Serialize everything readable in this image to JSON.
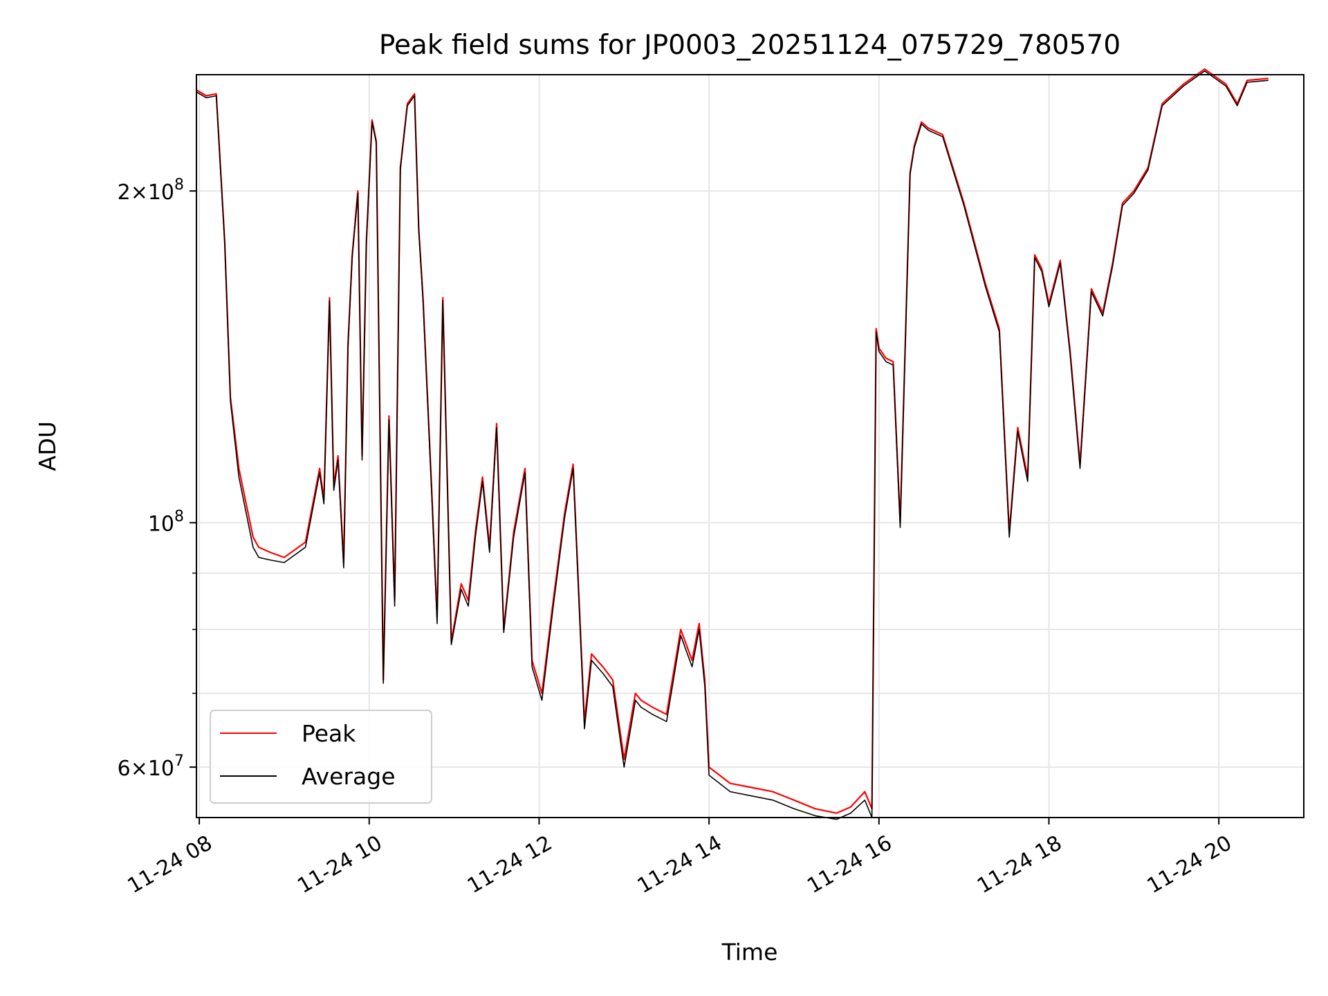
{
  "chart_data": {
    "type": "line",
    "title": "Peak field sums for JP0003_20251124_075729_780570",
    "xlabel": "Time",
    "ylabel": "ADU",
    "x_axis_type": "datetime",
    "xlim": [
      "2025-11-24T07:58",
      "2025-11-24T21:00"
    ],
    "ylim": [
      54000000,
      255000000
    ],
    "yscale": "log",
    "grid": true,
    "legend_position": "lower-left",
    "x_ticks": [
      {
        "value": "2025-11-24T08:00",
        "label": "11-24 08"
      },
      {
        "value": "2025-11-24T10:00",
        "label": "11-24 10"
      },
      {
        "value": "2025-11-24T12:00",
        "label": "11-24 12"
      },
      {
        "value": "2025-11-24T14:00",
        "label": "11-24 14"
      },
      {
        "value": "2025-11-24T16:00",
        "label": "11-24 16"
      },
      {
        "value": "2025-11-24T18:00",
        "label": "11-24 18"
      },
      {
        "value": "2025-11-24T20:00",
        "label": "11-24 20"
      }
    ],
    "y_ticks": [
      {
        "value": 60000000,
        "mantissa": "6",
        "exp": "7"
      },
      {
        "value": 100000000,
        "mantissa": "",
        "exp": "8"
      },
      {
        "value": 200000000,
        "mantissa": "2",
        "exp": "8"
      }
    ],
    "y_minor_ticks": [
      70000000,
      80000000,
      90000000
    ],
    "series": [
      {
        "name": "Peak",
        "color": "#ff0000",
        "x": [
          "2025-11-24T07:58",
          "2025-11-24T08:05",
          "2025-11-24T08:12",
          "2025-11-24T08:18",
          "2025-11-24T08:22",
          "2025-11-24T08:28",
          "2025-11-24T08:38",
          "2025-11-24T08:42",
          "2025-11-24T08:50",
          "2025-11-24T09:00",
          "2025-11-24T09:15",
          "2025-11-24T09:25",
          "2025-11-24T09:28",
          "2025-11-24T09:32",
          "2025-11-24T09:35",
          "2025-11-24T09:38",
          "2025-11-24T09:42",
          "2025-11-24T09:45",
          "2025-11-24T09:48",
          "2025-11-24T09:52",
          "2025-11-24T09:55",
          "2025-11-24T09:58",
          "2025-11-24T10:02",
          "2025-11-24T10:05",
          "2025-11-24T10:10",
          "2025-11-24T10:14",
          "2025-11-24T10:18",
          "2025-11-24T10:22",
          "2025-11-24T10:27",
          "2025-11-24T10:32",
          "2025-11-24T10:35",
          "2025-11-24T10:38",
          "2025-11-24T10:44",
          "2025-11-24T10:48",
          "2025-11-24T10:52",
          "2025-11-24T10:58",
          "2025-11-24T11:05",
          "2025-11-24T11:10",
          "2025-11-24T11:15",
          "2025-11-24T11:20",
          "2025-11-24T11:25",
          "2025-11-24T11:30",
          "2025-11-24T11:35",
          "2025-11-24T11:42",
          "2025-11-24T11:50",
          "2025-11-24T11:55",
          "2025-11-24T12:02",
          "2025-11-24T12:10",
          "2025-11-24T12:18",
          "2025-11-24T12:24",
          "2025-11-24T12:32",
          "2025-11-24T12:37",
          "2025-11-24T12:45",
          "2025-11-24T12:52",
          "2025-11-24T13:00",
          "2025-11-24T13:08",
          "2025-11-24T13:12",
          "2025-11-24T13:20",
          "2025-11-24T13:30",
          "2025-11-24T13:40",
          "2025-11-24T13:48",
          "2025-11-24T13:53",
          "2025-11-24T13:57",
          "2025-11-24T14:00",
          "2025-11-24T14:15",
          "2025-11-24T14:30",
          "2025-11-24T14:45",
          "2025-11-24T15:00",
          "2025-11-24T15:15",
          "2025-11-24T15:30",
          "2025-11-24T15:40",
          "2025-11-24T15:50",
          "2025-11-24T15:55",
          "2025-11-24T15:58",
          "2025-11-24T16:00",
          "2025-11-24T16:05",
          "2025-11-24T16:10",
          "2025-11-24T16:15",
          "2025-11-24T16:22",
          "2025-11-24T16:25",
          "2025-11-24T16:30",
          "2025-11-24T16:35",
          "2025-11-24T16:45",
          "2025-11-24T17:00",
          "2025-11-24T17:15",
          "2025-11-24T17:25",
          "2025-11-24T17:32",
          "2025-11-24T17:38",
          "2025-11-24T17:45",
          "2025-11-24T17:50",
          "2025-11-24T17:55",
          "2025-11-24T18:00",
          "2025-11-24T18:08",
          "2025-11-24T18:15",
          "2025-11-24T18:22",
          "2025-11-24T18:30",
          "2025-11-24T18:38",
          "2025-11-24T18:45",
          "2025-11-24T18:52",
          "2025-11-24T19:00",
          "2025-11-24T19:10",
          "2025-11-24T19:20",
          "2025-11-24T19:35",
          "2025-11-24T19:50",
          "2025-11-24T20:05",
          "2025-11-24T20:13",
          "2025-11-24T20:20",
          "2025-11-24T20:35"
        ],
        "values": [
          247000000,
          244000000,
          245000000,
          180000000,
          130000000,
          112000000,
          97000000,
          95000000,
          94000000,
          93000000,
          96000000,
          112000000,
          105000000,
          160000000,
          108000000,
          115000000,
          92000000,
          145000000,
          175000000,
          200000000,
          115000000,
          180000000,
          232000000,
          222000000,
          72000000,
          125000000,
          85000000,
          210000000,
          240000000,
          245000000,
          185000000,
          160000000,
          108000000,
          82000000,
          160000000,
          78000000,
          88000000,
          85000000,
          98000000,
          110000000,
          95000000,
          123000000,
          80000000,
          98000000,
          112000000,
          75000000,
          70000000,
          85000000,
          102000000,
          113000000,
          66000000,
          76000000,
          74000000,
          72000000,
          61000000,
          70000000,
          69000000,
          68000000,
          67000000,
          80000000,
          75000000,
          81000000,
          72000000,
          60000000,
          58000000,
          57500000,
          57000000,
          56000000,
          55000000,
          54500000,
          55200000,
          57000000,
          55000000,
          150000000,
          144000000,
          141000000,
          140000000,
          100000000,
          208000000,
          220000000,
          231000000,
          228000000,
          225000000,
          195000000,
          165000000,
          150000000,
          98000000,
          122000000,
          110000000,
          175000000,
          170000000,
          158000000,
          173000000,
          143000000,
          113000000,
          163000000,
          155000000,
          172000000,
          195000000,
          200000000,
          210000000,
          240000000,
          250000000,
          258000000,
          250000000,
          240000000,
          252000000,
          253000000
        ]
      },
      {
        "name": "Average",
        "color": "#000000",
        "x": [
          "2025-11-24T07:58",
          "2025-11-24T08:05",
          "2025-11-24T08:12",
          "2025-11-24T08:18",
          "2025-11-24T08:22",
          "2025-11-24T08:28",
          "2025-11-24T08:38",
          "2025-11-24T08:42",
          "2025-11-24T08:50",
          "2025-11-24T09:00",
          "2025-11-24T09:15",
          "2025-11-24T09:25",
          "2025-11-24T09:28",
          "2025-11-24T09:32",
          "2025-11-24T09:35",
          "2025-11-24T09:38",
          "2025-11-24T09:42",
          "2025-11-24T09:45",
          "2025-11-24T09:48",
          "2025-11-24T09:52",
          "2025-11-24T09:55",
          "2025-11-24T09:58",
          "2025-11-24T10:02",
          "2025-11-24T10:05",
          "2025-11-24T10:10",
          "2025-11-24T10:14",
          "2025-11-24T10:18",
          "2025-11-24T10:22",
          "2025-11-24T10:27",
          "2025-11-24T10:32",
          "2025-11-24T10:35",
          "2025-11-24T10:38",
          "2025-11-24T10:44",
          "2025-11-24T10:48",
          "2025-11-24T10:52",
          "2025-11-24T10:58",
          "2025-11-24T11:05",
          "2025-11-24T11:10",
          "2025-11-24T11:15",
          "2025-11-24T11:20",
          "2025-11-24T11:25",
          "2025-11-24T11:30",
          "2025-11-24T11:35",
          "2025-11-24T11:42",
          "2025-11-24T11:50",
          "2025-11-24T11:55",
          "2025-11-24T12:02",
          "2025-11-24T12:10",
          "2025-11-24T12:18",
          "2025-11-24T12:24",
          "2025-11-24T12:32",
          "2025-11-24T12:37",
          "2025-11-24T12:45",
          "2025-11-24T12:52",
          "2025-11-24T13:00",
          "2025-11-24T13:08",
          "2025-11-24T13:12",
          "2025-11-24T13:20",
          "2025-11-24T13:30",
          "2025-11-24T13:40",
          "2025-11-24T13:48",
          "2025-11-24T13:53",
          "2025-11-24T13:57",
          "2025-11-24T14:00",
          "2025-11-24T14:15",
          "2025-11-24T14:30",
          "2025-11-24T14:45",
          "2025-11-24T15:00",
          "2025-11-24T15:15",
          "2025-11-24T15:30",
          "2025-11-24T15:40",
          "2025-11-24T15:50",
          "2025-11-24T15:55",
          "2025-11-24T15:58",
          "2025-11-24T16:00",
          "2025-11-24T16:05",
          "2025-11-24T16:10",
          "2025-11-24T16:15",
          "2025-11-24T16:22",
          "2025-11-24T16:25",
          "2025-11-24T16:30",
          "2025-11-24T16:35",
          "2025-11-24T16:45",
          "2025-11-24T17:00",
          "2025-11-24T17:15",
          "2025-11-24T17:25",
          "2025-11-24T17:32",
          "2025-11-24T17:38",
          "2025-11-24T17:45",
          "2025-11-24T17:50",
          "2025-11-24T17:55",
          "2025-11-24T18:00",
          "2025-11-24T18:08",
          "2025-11-24T18:15",
          "2025-11-24T18:22",
          "2025-11-24T18:30",
          "2025-11-24T18:38",
          "2025-11-24T18:45",
          "2025-11-24T18:52",
          "2025-11-24T19:00",
          "2025-11-24T19:10",
          "2025-11-24T19:20",
          "2025-11-24T19:35",
          "2025-11-24T19:50",
          "2025-11-24T20:05",
          "2025-11-24T20:13",
          "2025-11-24T20:20",
          "2025-11-24T20:35"
        ],
        "values": [
          246000000,
          243000000,
          244000000,
          179000000,
          129000000,
          110000000,
          95000000,
          93000000,
          92500000,
          92000000,
          95000000,
          111000000,
          104000000,
          159000000,
          107000000,
          114000000,
          91000000,
          144000000,
          174000000,
          199000000,
          114000000,
          179000000,
          231000000,
          221000000,
          71500000,
          124000000,
          84000000,
          209000000,
          239000000,
          244000000,
          184000000,
          159000000,
          107000000,
          81000000,
          159000000,
          77500000,
          87000000,
          84000000,
          97000000,
          109000000,
          94000000,
          122000000,
          79500000,
          97000000,
          111000000,
          74000000,
          69000000,
          84000000,
          101000000,
          112000000,
          65000000,
          75000000,
          73000000,
          71000000,
          60000000,
          69000000,
          68000000,
          67000000,
          66000000,
          79000000,
          74000000,
          80000000,
          71000000,
          59000000,
          57000000,
          56500000,
          56000000,
          55000000,
          54200000,
          53800000,
          54500000,
          56000000,
          54000000,
          149000000,
          143000000,
          140000000,
          139000000,
          99000000,
          207000000,
          219000000,
          230000000,
          227000000,
          224000000,
          194000000,
          164000000,
          149000000,
          97000000,
          121000000,
          109000000,
          174000000,
          169000000,
          157000000,
          172000000,
          142000000,
          112000000,
          162000000,
          154000000,
          171000000,
          194000000,
          199000000,
          209000000,
          239000000,
          249000000,
          257000000,
          249000000,
          239000000,
          251000000,
          252000000
        ]
      }
    ]
  }
}
